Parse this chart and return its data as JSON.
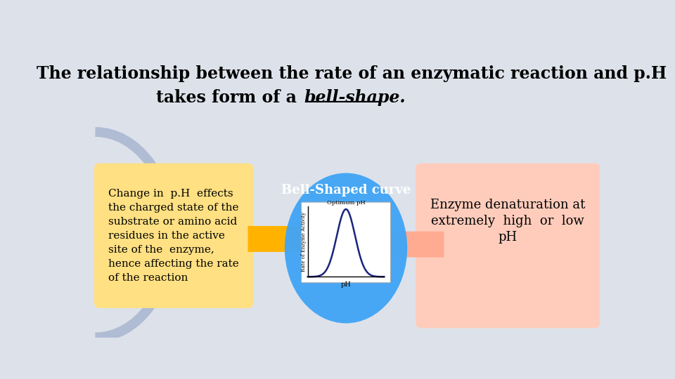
{
  "title_line1": "The relationship between the rate of an enzymatic reaction and p.H",
  "title_line2_plain": "takes form of a ",
  "title_line2_styled": "bell-shape.",
  "bg_color": "#dde2ea",
  "left_box_text": "Change in  p.H  effects\nthe charged state of the\nsubstrate or amino acid\nresidues in the active\nsite of the  enzyme,\nhence affecting the rate\nof the reaction",
  "left_box_color": "#FFE082",
  "right_box_color": "#FFCCBC",
  "right_box_text_line1": "Enzyme denaturation at",
  "right_box_text_line2": "extremely  high  or  low",
  "right_box_text_line3": "pH",
  "center_ellipse_color": "#42A5F5",
  "center_label": "Bell-Shaped curve",
  "arrow_left_color": "#FFB300",
  "arrow_right_color": "#FFAB91",
  "title_fontsize": 17,
  "subtitle_fontsize": 17
}
